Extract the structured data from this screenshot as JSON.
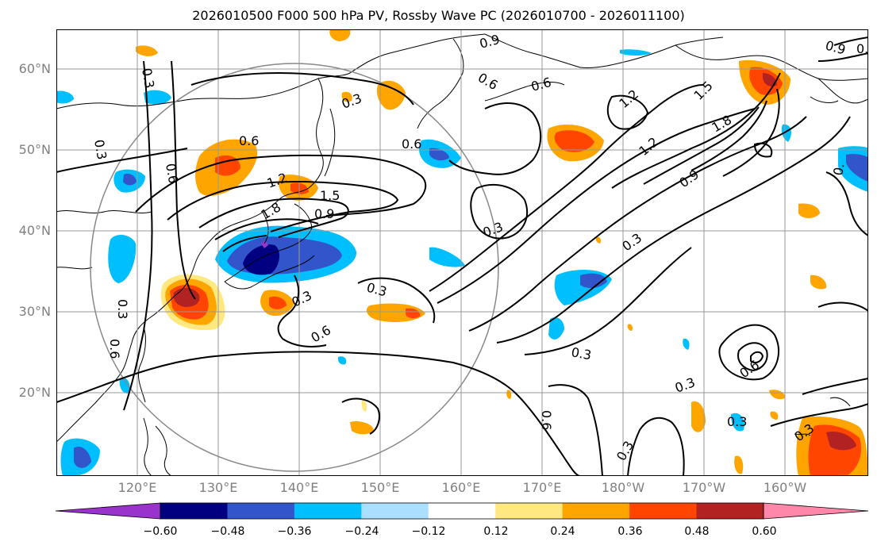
{
  "title": "2026010500 F000 500 hPa PV, Rossby Wave PC (2026010700 - 2026011100)",
  "lat_labels": [
    "60°N",
    "50°N",
    "40°N",
    "30°N",
    "20°N"
  ],
  "lon_labels": [
    "120°E",
    "130°E",
    "140°E",
    "150°E",
    "160°E",
    "170°E",
    "180°W",
    "170°W",
    "160°W"
  ],
  "colorbar": {
    "ticks": [
      "−0.60",
      "−0.48",
      "−0.36",
      "−0.24",
      "−0.12",
      "0.12",
      "0.24",
      "0.36",
      "0.48",
      "0.60"
    ],
    "colors": [
      "#9933cc",
      "#000080",
      "#3355cc",
      "#00bfff",
      "#aadfff",
      "#ffffff",
      "#ffe880",
      "#ffa500",
      "#ff4500",
      "#b22222",
      "#ff88aa"
    ]
  },
  "contour_labels": [
    "0.3",
    "0.6",
    "0.9",
    "1.2",
    "1.5",
    "1.8"
  ]
}
